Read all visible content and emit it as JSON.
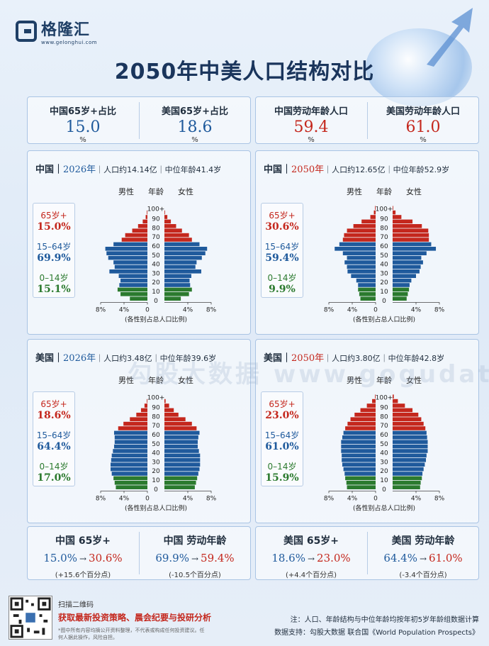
{
  "header": {
    "logo_name": "格隆汇",
    "logo_url": "www.gelonghui.com",
    "title": "2050年中美人口结构对比"
  },
  "top_stats": [
    {
      "label": "中国65岁+占比",
      "value": "15.0",
      "unit": "%",
      "color": "#1f5a9c"
    },
    {
      "label": "美国65岁+占比",
      "value": "18.6",
      "unit": "%",
      "color": "#1f5a9c"
    },
    {
      "label": "中国劳动年龄人口",
      "value": "59.4",
      "unit": "%",
      "color": "#c4271d"
    },
    {
      "label": "美国劳动年龄人口",
      "value": "61.0",
      "unit": "%",
      "color": "#c4271d"
    }
  ],
  "pyramid_common": {
    "male": "男性",
    "age": "年龄",
    "female": "女性",
    "age_ticks": [
      "100+",
      "90",
      "80",
      "70",
      "60",
      "50",
      "40",
      "30",
      "20",
      "10",
      "0"
    ],
    "x_ticks": [
      "8%",
      "4%",
      "0",
      "4%",
      "8%"
    ],
    "x_label": "(各性别占总人口比例)"
  },
  "panels": [
    {
      "country": "中国",
      "year": "2026年",
      "year_color": "#1f5a9c",
      "pop": "人口约14.14亿",
      "median": "中位年龄41.4岁",
      "groups": [
        {
          "name": "65岁+",
          "value": "15.0%",
          "color": "#c4271d"
        },
        {
          "name": "15–64岁",
          "value": "69.9%",
          "color": "#1f5a9c"
        },
        {
          "name": "0–14岁",
          "value": "15.1%",
          "color": "#2b7a2e"
        }
      ]
    },
    {
      "country": "中国",
      "year": "2050年",
      "year_color": "#c4271d",
      "pop": "人口约12.65亿",
      "median": "中位年龄52.9岁",
      "groups": [
        {
          "name": "65岁+",
          "value": "30.6%",
          "color": "#c4271d"
        },
        {
          "name": "15–64岁",
          "value": "59.4%",
          "color": "#1f5a9c"
        },
        {
          "name": "0–14岁",
          "value": "9.9%",
          "color": "#2b7a2e"
        }
      ]
    },
    {
      "country": "美国",
      "year": "2026年",
      "year_color": "#1f5a9c",
      "pop": "人口约3.48亿",
      "median": "中位年龄39.6岁",
      "groups": [
        {
          "name": "65岁+",
          "value": "18.6%",
          "color": "#c4271d"
        },
        {
          "name": "15–64岁",
          "value": "64.4%",
          "color": "#1f5a9c"
        },
        {
          "name": "0–14岁",
          "value": "17.0%",
          "color": "#2b7a2e"
        }
      ]
    },
    {
      "country": "美国",
      "year": "2050年",
      "year_color": "#c4271d",
      "pop": "人口约3.80亿",
      "median": "中位年龄42.8岁",
      "groups": [
        {
          "name": "65岁+",
          "value": "23.0%",
          "color": "#c4271d"
        },
        {
          "name": "15–64岁",
          "value": "61.0%",
          "color": "#1f5a9c"
        },
        {
          "name": "0–14岁",
          "value": "15.9%",
          "color": "#2b7a2e"
        }
      ]
    }
  ],
  "chart_data": [
    {
      "type": "bar",
      "title": "中国 2026年",
      "categories": [
        "0-4",
        "5-9",
        "10-14",
        "15-19",
        "20-24",
        "25-29",
        "30-34",
        "35-39",
        "40-44",
        "45-49",
        "50-54",
        "55-59",
        "60-64",
        "65-69",
        "70-74",
        "75-79",
        "80-84",
        "85-89",
        "90-94",
        "95-99",
        "100+"
      ],
      "series": [
        {
          "name": "男性",
          "values": [
            3.0,
            4.6,
            5.1,
            4.8,
            4.6,
            4.9,
            6.5,
            5.6,
            5.8,
            6.7,
            7.0,
            7.2,
            5.8,
            4.4,
            3.8,
            2.6,
            1.6,
            0.8,
            0.3,
            0.1,
            0.0
          ]
        },
        {
          "name": "女性",
          "values": [
            2.8,
            4.2,
            4.7,
            4.4,
            4.3,
            4.6,
            6.3,
            5.3,
            5.5,
            6.4,
            7.0,
            7.3,
            6.0,
            4.7,
            4.2,
            3.0,
            2.0,
            1.1,
            0.5,
            0.1,
            0.0
          ]
        }
      ],
      "xlim": [
        -8,
        8
      ],
      "xlabel": "(各性别占总人口比例)",
      "ylabel": "年龄"
    },
    {
      "type": "bar",
      "title": "中国 2050年",
      "categories": [
        "0-4",
        "5-9",
        "10-14",
        "15-19",
        "20-24",
        "25-29",
        "30-34",
        "35-39",
        "40-44",
        "45-49",
        "50-54",
        "55-59",
        "60-64",
        "65-69",
        "70-74",
        "75-79",
        "80-84",
        "85-89",
        "90-94",
        "95-99",
        "100+"
      ],
      "series": [
        {
          "name": "男性",
          "values": [
            2.6,
            2.8,
            3.0,
            3.0,
            3.3,
            4.2,
            4.8,
            4.9,
            5.3,
            4.9,
            5.6,
            7.0,
            6.2,
            5.6,
            5.4,
            4.9,
            3.8,
            2.4,
            0.9,
            0.3,
            0.1
          ]
        },
        {
          "name": "女性",
          "values": [
            2.4,
            2.6,
            2.8,
            2.9,
            3.2,
            4.0,
            4.6,
            4.8,
            5.2,
            4.9,
            5.8,
            7.4,
            6.6,
            6.2,
            6.2,
            6.1,
            5.0,
            3.4,
            1.5,
            0.5,
            0.1
          ]
        }
      ],
      "xlim": [
        -8,
        8
      ],
      "xlabel": "(各性别占总人口比例)",
      "ylabel": "年龄"
    },
    {
      "type": "bar",
      "title": "美国 2026年",
      "categories": [
        "0-4",
        "5-9",
        "10-14",
        "15-19",
        "20-24",
        "25-29",
        "30-34",
        "35-39",
        "40-44",
        "45-49",
        "50-54",
        "55-59",
        "60-64",
        "65-69",
        "70-74",
        "75-79",
        "80-84",
        "85-89",
        "90-94",
        "95-99",
        "100+"
      ],
      "series": [
        {
          "name": "男性",
          "values": [
            5.4,
            5.6,
            5.8,
            6.1,
            6.3,
            6.3,
            6.2,
            6.1,
            5.9,
            5.7,
            5.6,
            5.6,
            5.7,
            5.0,
            4.1,
            3.0,
            1.9,
            1.1,
            0.5,
            0.1,
            0.0
          ]
        },
        {
          "name": "女性",
          "values": [
            5.2,
            5.4,
            5.6,
            5.8,
            6.0,
            6.1,
            6.1,
            6.1,
            5.9,
            5.7,
            5.7,
            5.8,
            6.0,
            5.5,
            4.7,
            3.6,
            2.4,
            1.6,
            0.8,
            0.2,
            0.0
          ]
        }
      ],
      "xlim": [
        -8,
        8
      ],
      "xlabel": "(各性别占总人口比例)",
      "ylabel": "年龄"
    },
    {
      "type": "bar",
      "title": "美国 2050年",
      "categories": [
        "0-4",
        "5-9",
        "10-14",
        "15-19",
        "20-24",
        "25-29",
        "30-34",
        "35-39",
        "40-44",
        "45-49",
        "50-54",
        "55-59",
        "60-64",
        "65-69",
        "70-74",
        "75-79",
        "80-84",
        "85-89",
        "90-94",
        "95-99",
        "100+"
      ],
      "series": [
        {
          "name": "男性",
          "values": [
            4.9,
            5.0,
            5.2,
            5.3,
            5.5,
            5.7,
            5.8,
            5.8,
            5.9,
            5.9,
            5.9,
            5.7,
            5.5,
            5.2,
            4.8,
            4.3,
            3.6,
            2.6,
            1.5,
            0.6,
            0.1
          ]
        },
        {
          "name": "女性",
          "values": [
            4.7,
            4.8,
            5.0,
            5.1,
            5.3,
            5.5,
            5.7,
            5.8,
            6.0,
            6.0,
            6.0,
            5.9,
            5.8,
            5.6,
            5.3,
            4.9,
            4.4,
            3.4,
            2.1,
            0.9,
            0.2
          ]
        }
      ],
      "xlim": [
        -8,
        8
      ],
      "xlabel": "(各性别占总人口比例)",
      "ylabel": "年龄"
    }
  ],
  "comparisons": [
    {
      "title": "中国 65岁+",
      "from": "15.0%",
      "arrow": "→",
      "to": "30.6%",
      "delta": "(+15.6个百分点)"
    },
    {
      "title": "中国 劳动年龄",
      "from": "69.9%",
      "arrow": "→",
      "to": "59.4%",
      "delta": "(-10.5个百分点)"
    },
    {
      "title": "美国 65岁+",
      "from": "18.6%",
      "arrow": "→",
      "to": "23.0%",
      "delta": "(+4.4个百分点)"
    },
    {
      "title": "美国 劳动年龄",
      "from": "64.4%",
      "arrow": "→",
      "to": "61.0%",
      "delta": "(-3.4个百分点)"
    }
  ],
  "footer": {
    "scan": "扫描二维码",
    "promo": "获取最新投资策略、晨会纪要与投研分析",
    "disclaimer": "*图中所有内容均摘公开资料整理，不代表或构成任何投资建议。任何人据此操作，风险自担。",
    "note": "注：人口、年龄结构与中位年龄均按年初5岁年龄组数据计算",
    "source": "数据支持：勾股大数据 联合国《World Population Prospects》"
  },
  "watermark": "勾股大数据  www.gogudata.com",
  "colors": {
    "old": "#c4271d",
    "work": "#1f5a9c",
    "young": "#2b7a2e"
  }
}
